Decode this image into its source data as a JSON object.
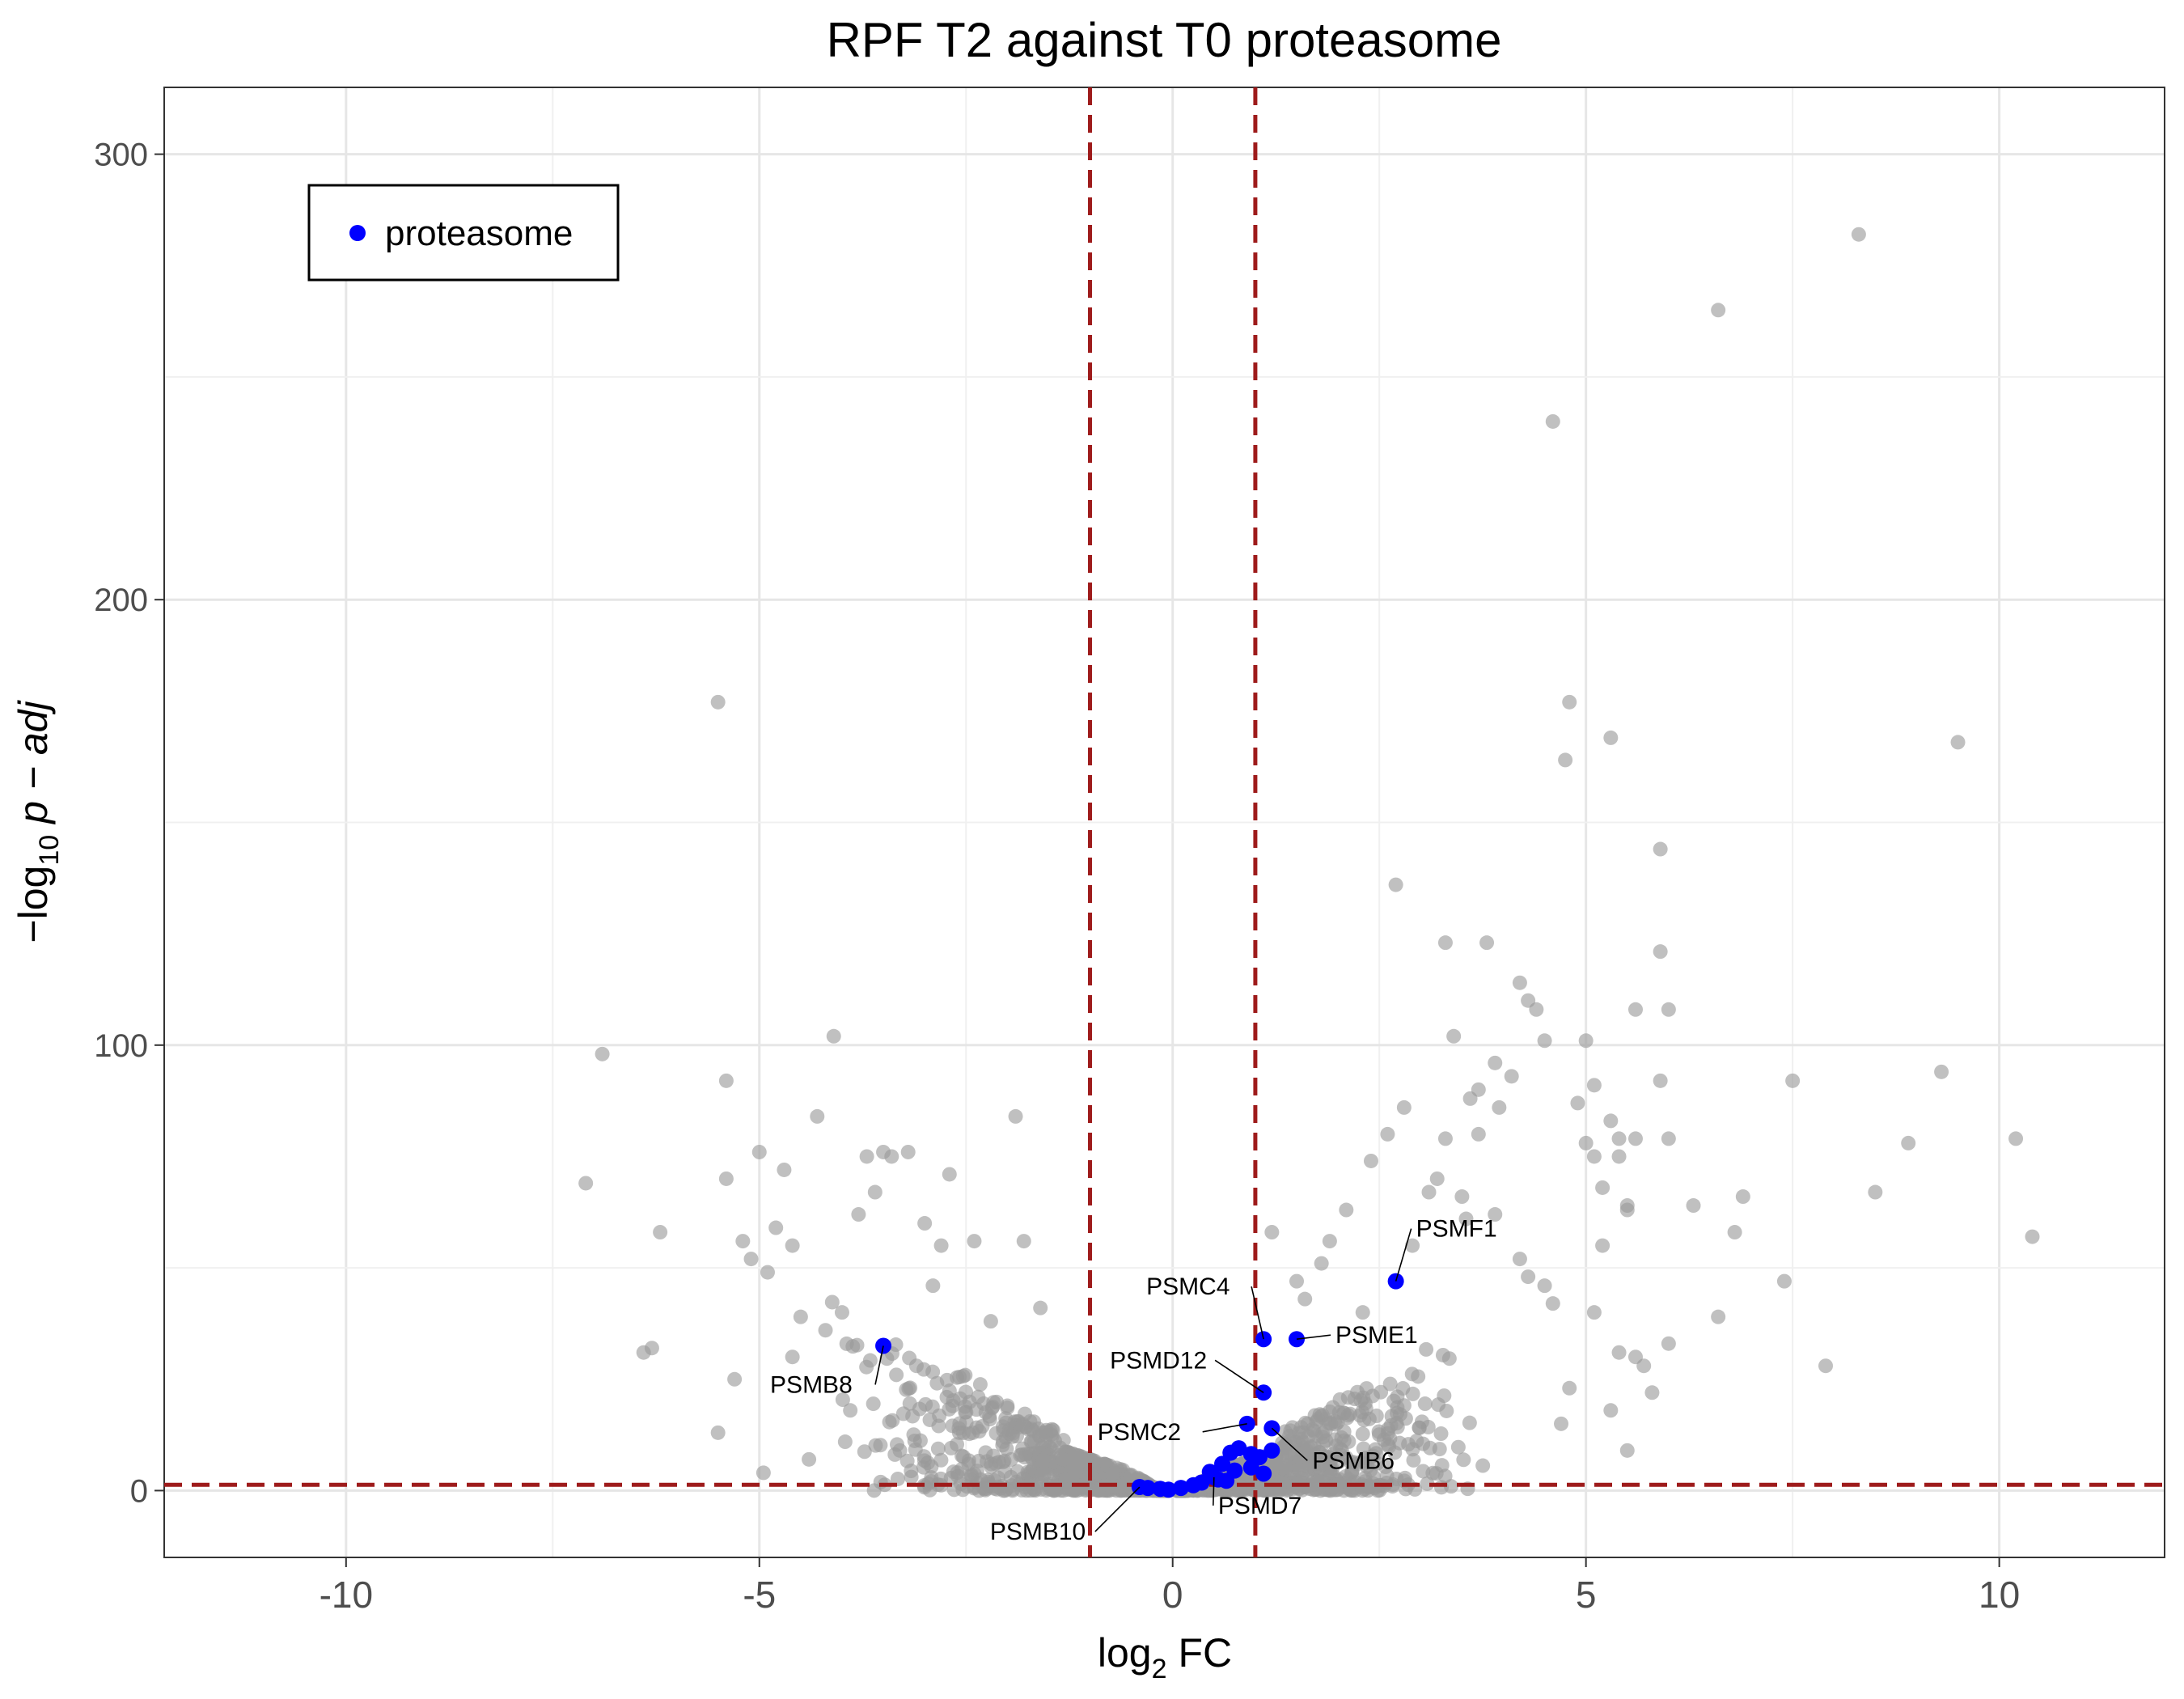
{
  "chart_data": {
    "type": "scatter",
    "title": "RPF T2 against T0 proteasome",
    "xlabel_main": "log",
    "xlabel_sub": "2",
    "xlabel_tail": " FC",
    "ylabel_prefix": "−log",
    "ylabel_sub": "10",
    "ylabel_tail": " p − adj",
    "xlim": [
      -12.2,
      12.0
    ],
    "ylim": [
      -15,
      315
    ],
    "x_ticks": [
      -10,
      -5,
      0,
      5,
      10
    ],
    "x_tick_labels": [
      "-10",
      "-5",
      "0",
      "5",
      "10"
    ],
    "y_ticks": [
      0,
      100,
      200,
      300
    ],
    "y_tick_labels": [
      "0",
      "100",
      "200",
      "300"
    ],
    "grid": true,
    "reference_lines": {
      "vertical": [
        -1,
        1
      ],
      "horizontal": [
        1.3
      ],
      "color": "#9e1b1b",
      "style": "dashed"
    },
    "legend": {
      "position": "top-left",
      "entries": [
        {
          "name": "proteasome",
          "color": "#0000ff"
        }
      ]
    },
    "background_color": "#999999",
    "highlight_color": "#0000ff",
    "background_points": [
      [
        -7.1,
        69
      ],
      [
        -6.9,
        98
      ],
      [
        -6.4,
        31
      ],
      [
        -6.3,
        32
      ],
      [
        -6.2,
        58
      ],
      [
        -5.5,
        177
      ],
      [
        -5.4,
        92
      ],
      [
        -5.4,
        70
      ],
      [
        -5.5,
        13
      ],
      [
        -5.3,
        25
      ],
      [
        -5.2,
        56
      ],
      [
        -5.1,
        52
      ],
      [
        -5.0,
        76
      ],
      [
        -4.9,
        49
      ],
      [
        -4.8,
        59
      ],
      [
        -4.7,
        72
      ],
      [
        -4.6,
        55
      ],
      [
        -4.3,
        84
      ],
      [
        -4.1,
        102
      ],
      [
        -4.0,
        40
      ],
      [
        -3.8,
        62
      ],
      [
        -3.6,
        67
      ],
      [
        -3.7,
        75
      ],
      [
        -3.5,
        76
      ],
      [
        -3.4,
        75
      ],
      [
        -3.2,
        76
      ],
      [
        -3.0,
        60
      ],
      [
        -2.8,
        55
      ],
      [
        -2.7,
        71
      ],
      [
        -2.4,
        56
      ],
      [
        -1.9,
        84
      ],
      [
        -1.8,
        56
      ],
      [
        -1.6,
        41
      ],
      [
        -4.95,
        4
      ],
      [
        -4.4,
        7
      ],
      [
        -3.9,
        18
      ],
      [
        -3.3,
        9
      ],
      [
        -2.9,
        46
      ],
      [
        -4.2,
        36
      ],
      [
        -4.6,
        30
      ],
      [
        -4.5,
        39
      ],
      [
        -3.1,
        28
      ],
      [
        -2.2,
        38
      ],
      [
        2.7,
        136
      ],
      [
        3.3,
        123
      ],
      [
        3.8,
        123
      ],
      [
        3.4,
        102
      ],
      [
        4.2,
        114
      ],
      [
        4.3,
        110
      ],
      [
        4.4,
        108
      ],
      [
        4.5,
        101
      ],
      [
        3.9,
        96
      ],
      [
        3.6,
        88
      ],
      [
        3.7,
        90
      ],
      [
        4.1,
        93
      ],
      [
        3.95,
        86
      ],
      [
        4.8,
        177
      ],
      [
        4.75,
        164
      ],
      [
        5.3,
        169
      ],
      [
        5.9,
        144
      ],
      [
        5.9,
        121
      ],
      [
        6.0,
        108
      ],
      [
        5.6,
        108
      ],
      [
        5.0,
        101
      ],
      [
        5.1,
        91
      ],
      [
        5.9,
        92
      ],
      [
        4.9,
        87
      ],
      [
        5.3,
        83
      ],
      [
        5.4,
        79
      ],
      [
        5.6,
        79
      ],
      [
        5.1,
        75
      ],
      [
        5.4,
        75
      ],
      [
        5.0,
        78
      ],
      [
        6.0,
        79
      ],
      [
        6.6,
        265
      ],
      [
        4.6,
        240
      ],
      [
        8.3,
        282
      ],
      [
        9.5,
        168
      ],
      [
        7.5,
        92
      ],
      [
        9.3,
        94
      ],
      [
        10.2,
        79
      ],
      [
        8.9,
        78
      ],
      [
        8.5,
        67
      ],
      [
        6.9,
        66
      ],
      [
        6.8,
        58
      ],
      [
        7.4,
        47
      ],
      [
        10.4,
        57
      ],
      [
        6.3,
        64
      ],
      [
        5.5,
        64
      ],
      [
        5.5,
        63
      ],
      [
        5.2,
        68
      ],
      [
        5.2,
        55
      ],
      [
        6.6,
        39
      ],
      [
        6.0,
        33
      ],
      [
        7.9,
        28
      ],
      [
        5.7,
        28
      ],
      [
        5.6,
        30
      ],
      [
        5.4,
        31
      ],
      [
        5.8,
        22
      ],
      [
        5.3,
        18
      ],
      [
        5.1,
        40
      ],
      [
        4.8,
        23
      ],
      [
        5.5,
        9
      ],
      [
        4.6,
        42
      ],
      [
        4.5,
        46
      ],
      [
        4.3,
        48
      ],
      [
        4.2,
        52
      ],
      [
        4.7,
        15
      ],
      [
        2.6,
        80
      ],
      [
        2.8,
        86
      ],
      [
        3.3,
        79
      ],
      [
        3.1,
        67
      ],
      [
        3.5,
        66
      ],
      [
        3.9,
        62
      ],
      [
        2.9,
        55
      ],
      [
        3.2,
        70
      ],
      [
        3.55,
        61
      ],
      [
        3.7,
        80
      ],
      [
        2.4,
        74
      ],
      [
        2.1,
        63
      ],
      [
        1.9,
        56
      ],
      [
        1.8,
        51
      ],
      [
        1.5,
        47
      ],
      [
        2.3,
        40
      ],
      [
        1.6,
        43
      ],
      [
        1.2,
        58
      ]
    ],
    "highlight_points": [
      {
        "x": -3.5,
        "y": 32.5,
        "label": "PSMB8"
      },
      {
        "x": 2.7,
        "y": 47,
        "label": "PSMF1"
      },
      {
        "x": 1.1,
        "y": 34,
        "label": "PSMC4"
      },
      {
        "x": 1.5,
        "y": 34,
        "label": "PSME1"
      },
      {
        "x": 1.1,
        "y": 22,
        "label": "PSMD12"
      },
      {
        "x": 0.9,
        "y": 15,
        "label": "PSMC2"
      },
      {
        "x": 1.2,
        "y": 14,
        "label": "PSMB6"
      },
      {
        "x": 0.5,
        "y": 3,
        "label": "PSMD7"
      },
      {
        "x": -0.4,
        "y": 0.8,
        "label": "PSMB10"
      },
      {
        "x": 0.7,
        "y": 8.5,
        "label": ""
      },
      {
        "x": 0.8,
        "y": 9.5,
        "label": ""
      },
      {
        "x": 0.95,
        "y": 8.2,
        "label": ""
      },
      {
        "x": 1.05,
        "y": 7.5,
        "label": ""
      },
      {
        "x": 1.2,
        "y": 9,
        "label": ""
      },
      {
        "x": 0.6,
        "y": 6,
        "label": ""
      },
      {
        "x": 0.75,
        "y": 4.5,
        "label": ""
      },
      {
        "x": 0.95,
        "y": 5.2,
        "label": ""
      },
      {
        "x": 1.1,
        "y": 3.8,
        "label": ""
      },
      {
        "x": 0.45,
        "y": 4.2,
        "label": ""
      },
      {
        "x": 0.55,
        "y": 2.5,
        "label": ""
      },
      {
        "x": 0.35,
        "y": 1.8,
        "label": ""
      },
      {
        "x": 0.25,
        "y": 1.2,
        "label": ""
      },
      {
        "x": 0.1,
        "y": 0.6,
        "label": ""
      },
      {
        "x": -0.05,
        "y": 0.2,
        "label": ""
      },
      {
        "x": -0.15,
        "y": 0.4,
        "label": ""
      },
      {
        "x": -0.3,
        "y": 0.6,
        "label": ""
      },
      {
        "x": 0.65,
        "y": 2.2,
        "label": ""
      }
    ]
  }
}
